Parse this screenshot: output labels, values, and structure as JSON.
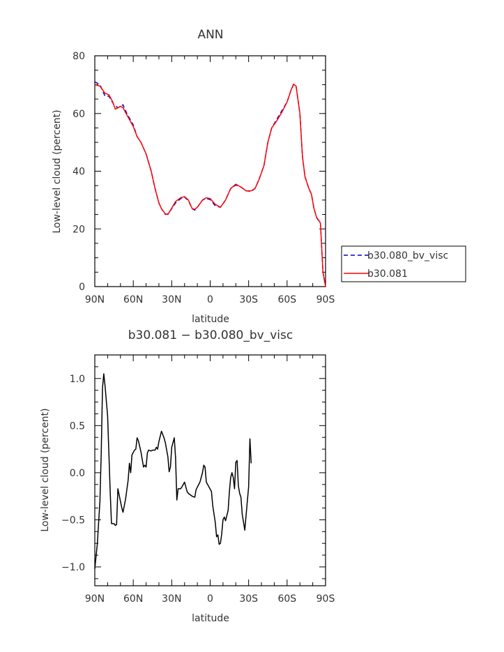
{
  "chart_data": [
    {
      "type": "line",
      "title": "ANN",
      "xlabel": "latitude",
      "ylabel": "Low-level cloud (percent)",
      "xlim": [
        -90,
        90
      ],
      "ylim": [
        0,
        80
      ],
      "xticks": [
        {
          "value": -90,
          "label": "90N"
        },
        {
          "value": -60,
          "label": "60N"
        },
        {
          "value": -30,
          "label": "30N"
        },
        {
          "value": 0,
          "label": "0"
        },
        {
          "value": 30,
          "label": "30S"
        },
        {
          "value": 60,
          "label": "60S"
        },
        {
          "value": 90,
          "label": "90S"
        }
      ],
      "yticks": [
        0,
        20,
        40,
        60,
        80
      ],
      "yticklabels": [
        "0",
        "20",
        "40",
        "60",
        "80"
      ],
      "legend_position": "right",
      "series": [
        {
          "name": "b30.080_bv_visc",
          "color": "#0000cc",
          "dash": "dashed",
          "points": [
            [
              -90,
              71.0
            ],
            [
              -86,
              70.0
            ],
            [
              -82,
              66.0
            ],
            [
              -79,
              66.0
            ],
            [
              -75,
              63.0
            ],
            [
              -72,
              62.0
            ],
            [
              -70,
              62.5
            ],
            [
              -68,
              63.0
            ],
            [
              -65,
              60.0
            ],
            [
              -60,
              56.0
            ],
            [
              -57,
              52.0
            ],
            [
              -54,
              50.0
            ],
            [
              -50,
              46.0
            ],
            [
              -46,
              40.0
            ],
            [
              -43,
              34.0
            ],
            [
              -40,
              29.0
            ],
            [
              -38,
              27.0
            ],
            [
              -35,
              25.0
            ],
            [
              -33,
              25.2
            ],
            [
              -30,
              27.0
            ],
            [
              -27,
              29.0
            ],
            [
              -23,
              30.5
            ],
            [
              -20,
              31.0
            ],
            [
              -17,
              29.8
            ],
            [
              -14,
              27.0
            ],
            [
              -12,
              26.5
            ],
            [
              -10,
              27.5
            ],
            [
              -6,
              30.0
            ],
            [
              -3,
              30.5
            ],
            [
              0,
              30.2
            ],
            [
              4,
              28.0
            ],
            [
              8,
              27.5
            ],
            [
              12,
              30.0
            ],
            [
              16,
              34.0
            ],
            [
              20,
              35.2
            ],
            [
              24,
              34.5
            ],
            [
              28,
              33.2
            ],
            [
              32,
              33.0
            ],
            [
              35,
              34.0
            ],
            [
              38,
              37.0
            ],
            [
              42,
              42.0
            ],
            [
              45,
              50.0
            ],
            [
              48,
              55.0
            ],
            [
              52,
              58.0
            ],
            [
              56,
              61.0
            ],
            [
              60,
              64.0
            ],
            [
              63,
              68.0
            ],
            [
              65,
              70.0
            ],
            [
              67,
              69.5
            ],
            [
              70,
              60.0
            ],
            [
              72,
              45.0
            ],
            [
              74,
              38.0
            ],
            [
              77,
              34.0
            ],
            [
              79,
              32.0
            ],
            [
              81,
              27.0
            ],
            [
              83,
              24.0
            ],
            [
              85,
              22.5
            ],
            [
              86,
              22.0
            ],
            [
              88,
              5.0
            ],
            [
              90,
              0.0
            ]
          ]
        },
        {
          "name": "b30.081",
          "color": "#ff0000",
          "dash": "solid",
          "points": [
            [
              -90,
              70.0
            ],
            [
              -86,
              69.5
            ],
            [
              -82,
              67.0
            ],
            [
              -79,
              66.5
            ],
            [
              -76,
              64.0
            ],
            [
              -74,
              61.5
            ],
            [
              -70,
              62.5
            ],
            [
              -68,
              62.0
            ],
            [
              -65,
              59.5
            ],
            [
              -60,
              55.5
            ],
            [
              -57,
              52.0
            ],
            [
              -54,
              50.0
            ],
            [
              -50,
              46.0
            ],
            [
              -46,
              40.0
            ],
            [
              -43,
              34.0
            ],
            [
              -40,
              29.0
            ],
            [
              -38,
              27.0
            ],
            [
              -35,
              25.2
            ],
            [
              -33,
              25.0
            ],
            [
              -30,
              27.2
            ],
            [
              -27,
              29.5
            ],
            [
              -23,
              30.8
            ],
            [
              -20,
              31.2
            ],
            [
              -17,
              30.0
            ],
            [
              -14,
              27.0
            ],
            [
              -12,
              26.8
            ],
            [
              -10,
              27.5
            ],
            [
              -6,
              30.0
            ],
            [
              -3,
              30.8
            ],
            [
              0,
              30.5
            ],
            [
              4,
              28.5
            ],
            [
              8,
              27.5
            ],
            [
              12,
              30.0
            ],
            [
              16,
              34.0
            ],
            [
              20,
              35.5
            ],
            [
              24,
              34.5
            ],
            [
              28,
              33.2
            ],
            [
              32,
              33.2
            ],
            [
              35,
              34.0
            ],
            [
              38,
              37.0
            ],
            [
              42,
              42.0
            ],
            [
              45,
              50.0
            ],
            [
              48,
              55.0
            ],
            [
              52,
              57.5
            ],
            [
              56,
              60.5
            ],
            [
              60,
              64.0
            ],
            [
              63,
              68.0
            ],
            [
              65,
              70.2
            ],
            [
              67,
              69.5
            ],
            [
              70,
              60.0
            ],
            [
              72,
              45.0
            ],
            [
              74,
              38.0
            ],
            [
              77,
              34.0
            ],
            [
              79,
              32.0
            ],
            [
              81,
              27.0
            ],
            [
              83,
              24.0
            ],
            [
              85,
              22.8
            ],
            [
              86,
              22.0
            ],
            [
              88,
              5.0
            ],
            [
              90,
              0.0
            ]
          ]
        }
      ]
    },
    {
      "type": "line",
      "title": "b30.081 − b30.080_bv_visc",
      "xlabel": "latitude",
      "ylabel": "Low-level cloud (percent)",
      "xlim": [
        -90,
        90
      ],
      "ylim": [
        -1.2,
        1.25
      ],
      "xticks": [
        {
          "value": -90,
          "label": "90N"
        },
        {
          "value": -60,
          "label": "60N"
        },
        {
          "value": -30,
          "label": "30N"
        },
        {
          "value": 0,
          "label": "0"
        },
        {
          "value": 30,
          "label": "30S"
        },
        {
          "value": 60,
          "label": "60S"
        },
        {
          "value": 90,
          "label": "90S"
        }
      ],
      "yticks": [
        -1.0,
        -0.5,
        0.0,
        0.5,
        1.0
      ],
      "yticklabels": [
        "−1.0",
        "−0.5",
        "0.0",
        "0.5",
        "1.0"
      ],
      "series": [
        {
          "color": "#000000",
          "dash": "solid",
          "points": [
            [
              -90,
              -1.02
            ],
            [
              -88,
              -0.75
            ],
            [
              -86,
              -0.3
            ],
            [
              -85,
              0.2
            ],
            [
              -84,
              0.9
            ],
            [
              -83,
              1.05
            ],
            [
              -82,
              0.92
            ],
            [
              -80,
              0.6
            ],
            [
              -78,
              -0.2
            ],
            [
              -77,
              -0.54
            ],
            [
              -75,
              -0.54
            ],
            [
              -74,
              -0.56
            ],
            [
              -73,
              -0.55
            ],
            [
              -72,
              -0.17
            ],
            [
              -69,
              -0.37
            ],
            [
              -68,
              -0.42
            ],
            [
              -66,
              -0.28
            ],
            [
              -64,
              -0.08
            ],
            [
              -63,
              0.1
            ],
            [
              -62,
              0.0
            ],
            [
              -61,
              0.19
            ],
            [
              -59,
              0.24
            ],
            [
              -58,
              0.25
            ],
            [
              -57,
              0.37
            ],
            [
              -56,
              0.34
            ],
            [
              -54,
              0.22
            ],
            [
              -52,
              0.06
            ],
            [
              -51,
              0.08
            ],
            [
              -50,
              0.06
            ],
            [
              -49,
              0.21
            ],
            [
              -48,
              0.24
            ],
            [
              -46,
              0.23
            ],
            [
              -45,
              0.24
            ],
            [
              -43,
              0.24
            ],
            [
              -42,
              0.27
            ],
            [
              -41,
              0.25
            ],
            [
              -40,
              0.33
            ],
            [
              -38,
              0.44
            ],
            [
              -36,
              0.37
            ],
            [
              -35,
              0.32
            ],
            [
              -33,
              0.17
            ],
            [
              -32,
              0.01
            ],
            [
              -31,
              0.06
            ],
            [
              -30,
              0.27
            ],
            [
              -28,
              0.37
            ],
            [
              -27,
              0.16
            ],
            [
              -26,
              -0.29
            ],
            [
              -25,
              -0.17
            ],
            [
              -23,
              -0.17
            ],
            [
              -22,
              -0.15
            ],
            [
              -20,
              -0.1
            ],
            [
              -18,
              -0.2
            ],
            [
              -17,
              -0.22
            ],
            [
              -14,
              -0.25
            ],
            [
              -12,
              -0.26
            ],
            [
              -11,
              -0.18
            ],
            [
              -8,
              -0.1
            ],
            [
              -6,
              0.0
            ],
            [
              -5,
              0.08
            ],
            [
              -4,
              0.06
            ],
            [
              -3,
              -0.1
            ],
            [
              -1,
              -0.15
            ],
            [
              1,
              -0.2
            ],
            [
              2,
              -0.35
            ],
            [
              4,
              -0.53
            ],
            [
              5,
              -0.68
            ],
            [
              6,
              -0.66
            ],
            [
              7,
              -0.76
            ],
            [
              8,
              -0.75
            ],
            [
              9,
              -0.65
            ],
            [
              10,
              -0.5
            ],
            [
              11,
              -0.47
            ],
            [
              12,
              -0.51
            ],
            [
              14,
              -0.4
            ],
            [
              15,
              -0.2
            ],
            [
              16,
              -0.05
            ],
            [
              17,
              0.0
            ],
            [
              18,
              -0.05
            ],
            [
              19,
              -0.17
            ],
            [
              20,
              0.11
            ],
            [
              21,
              0.13
            ],
            [
              22,
              -0.14
            ],
            [
              23,
              -0.22
            ],
            [
              24,
              -0.26
            ],
            [
              25,
              -0.44
            ],
            [
              27,
              -0.61
            ],
            [
              29,
              -0.3
            ],
            [
              30,
              -0.15
            ],
            [
              31,
              0.36
            ],
            [
              32,
              0.1
            ]
          ]
        }
      ]
    }
  ],
  "legend": {
    "items": [
      {
        "label": "b30.080_bv_visc",
        "color": "#0000cc",
        "dash": "dashed"
      },
      {
        "label": "b30.081",
        "color": "#ff0000",
        "dash": "solid"
      }
    ]
  }
}
